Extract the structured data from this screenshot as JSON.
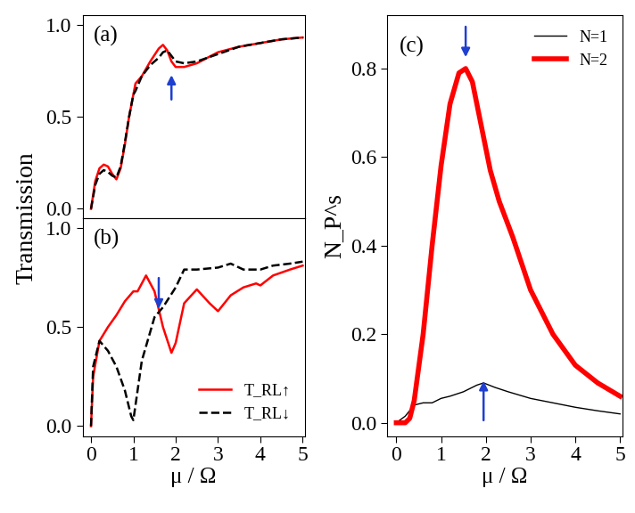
{
  "chart_data": [
    {
      "type": "line",
      "title": "(a)",
      "xlim": [
        -0.2,
        5.05
      ],
      "xticks": [
        0,
        1,
        2,
        3,
        4,
        5
      ],
      "ylim": [
        -0.05,
        1.05
      ],
      "yticks": [
        {
          "value": 0,
          "label": "0.0"
        },
        {
          "value": 0.5,
          "label": "0.5"
        },
        {
          "value": 1.0,
          "label": "1.0"
        }
      ],
      "tick_labels": "y",
      "series": [
        {
          "color": "#ff0000",
          "line_style": "solid",
          "x": [
            0,
            0.1,
            0.2,
            0.3,
            0.4,
            0.5,
            0.6,
            0.7,
            0.8,
            0.9,
            1.0,
            1.05,
            1.2,
            1.4,
            1.6,
            1.7,
            1.8,
            1.9,
            2.0,
            2.2,
            2.5,
            3,
            3.5,
            4,
            4.5,
            5
          ],
          "values": [
            0,
            0.15,
            0.22,
            0.24,
            0.23,
            0.19,
            0.16,
            0.22,
            0.35,
            0.5,
            0.62,
            0.68,
            0.72,
            0.8,
            0.87,
            0.89,
            0.86,
            0.8,
            0.77,
            0.77,
            0.79,
            0.85,
            0.88,
            0.9,
            0.92,
            0.93
          ]
        },
        {
          "color": "#000000",
          "line_style": "dashed",
          "x": [
            0,
            0.1,
            0.2,
            0.3,
            0.4,
            0.5,
            0.6,
            0.7,
            0.8,
            0.9,
            1.0,
            1.05,
            1.2,
            1.4,
            1.6,
            1.7,
            1.8,
            1.9,
            2.0,
            2.2,
            2.5,
            3,
            3.5,
            4,
            4.5,
            5
          ],
          "values": [
            0,
            0.13,
            0.19,
            0.21,
            0.2,
            0.18,
            0.17,
            0.23,
            0.36,
            0.5,
            0.62,
            0.64,
            0.72,
            0.78,
            0.82,
            0.85,
            0.86,
            0.83,
            0.8,
            0.79,
            0.8,
            0.84,
            0.88,
            0.9,
            0.92,
            0.93
          ]
        }
      ],
      "arrows": [
        {
          "x": 1.9,
          "y": 0.74,
          "from": 0.58
        }
      ]
    },
    {
      "type": "line",
      "title": "(b)",
      "x_label": "μ / Ω",
      "y_label": "Transmission",
      "xlim": [
        -0.2,
        5.05
      ],
      "xticks": [
        0,
        1,
        2,
        3,
        4,
        5
      ],
      "ylim": [
        -0.05,
        1.05
      ],
      "yticks": [
        {
          "value": 0,
          "label": "0.0"
        },
        {
          "value": 0.5,
          "label": "0.5"
        },
        {
          "value": 1.0,
          "label": "1.0"
        }
      ],
      "legend": "lower right",
      "series": [
        {
          "name": "T_RL↑",
          "color": "#ff0000",
          "line_style": "solid",
          "x": [
            0,
            0.05,
            0.2,
            0.4,
            0.6,
            0.8,
            1.0,
            1.1,
            1.3,
            1.5,
            1.7,
            1.9,
            2.0,
            2.2,
            2.5,
            2.8,
            3.0,
            3.3,
            3.6,
            3.9,
            4.0,
            4.3,
            4.7,
            5
          ],
          "values": [
            0,
            0.25,
            0.43,
            0.5,
            0.56,
            0.63,
            0.68,
            0.68,
            0.76,
            0.68,
            0.5,
            0.37,
            0.42,
            0.62,
            0.69,
            0.62,
            0.58,
            0.66,
            0.7,
            0.72,
            0.71,
            0.76,
            0.79,
            0.81
          ]
        },
        {
          "name": "T_RL↓",
          "color": "#000000",
          "line_style": "dashed",
          "x": [
            0,
            0.05,
            0.2,
            0.4,
            0.6,
            0.8,
            0.95,
            1.0,
            1.2,
            1.5,
            1.7,
            2,
            2.2,
            2.5,
            3,
            3.3,
            3.6,
            4,
            4.3,
            4.7,
            5
          ],
          "values": [
            0,
            0.3,
            0.43,
            0.38,
            0.3,
            0.18,
            0.05,
            0.03,
            0.33,
            0.55,
            0.6,
            0.7,
            0.79,
            0.79,
            0.8,
            0.82,
            0.79,
            0.79,
            0.81,
            0.82,
            0.83
          ]
        }
      ],
      "arrows": [
        {
          "x": 1.6,
          "y": 0.58,
          "from": 0.76
        }
      ]
    },
    {
      "type": "line",
      "title": "(c)",
      "x_label": "μ / Ω",
      "y_label": "N_P^s",
      "xlim": [
        -0.2,
        5.05
      ],
      "xticks": [
        0,
        1,
        2,
        3,
        4,
        5
      ],
      "ylim": [
        -0.03,
        0.92
      ],
      "yticks": [
        {
          "value": 0,
          "label": "0.0"
        },
        {
          "value": 0.2,
          "label": "0.2"
        },
        {
          "value": 0.4,
          "label": "0.4"
        },
        {
          "value": 0.6,
          "label": "0.6"
        },
        {
          "value": 0.8,
          "label": "0.8"
        }
      ],
      "legend": "upper right",
      "series": [
        {
          "name": "N=1",
          "color": "#000000",
          "line_style": "solid",
          "x": [
            0,
            0.2,
            0.4,
            0.6,
            0.8,
            1,
            1.2,
            1.5,
            1.8,
            1.95,
            2.2,
            2.5,
            3,
            3.5,
            4,
            4.5,
            5
          ],
          "values": [
            0,
            0.015,
            0.04,
            0.045,
            0.045,
            0.055,
            0.06,
            0.07,
            0.085,
            0.09,
            0.08,
            0.07,
            0.055,
            0.045,
            0.035,
            0.027,
            0.02
          ]
        },
        {
          "name": "N=2",
          "color": "#ff0000",
          "line_style": "solid",
          "x": [
            0,
            0.2,
            0.3,
            0.4,
            0.6,
            0.8,
            1.0,
            1.2,
            1.4,
            1.55,
            1.7,
            1.9,
            2.1,
            2.3,
            2.6,
            3,
            3.5,
            4,
            4.5,
            5
          ],
          "values": [
            0,
            0,
            0.01,
            0.05,
            0.2,
            0.4,
            0.58,
            0.72,
            0.79,
            0.8,
            0.77,
            0.67,
            0.57,
            0.5,
            0.42,
            0.3,
            0.2,
            0.13,
            0.09,
            0.06
          ]
        }
      ],
      "arrows": [
        {
          "x": 1.55,
          "y": 0.82,
          "from": 0.9
        },
        {
          "x": 1.95,
          "y": 0.1,
          "from": 0.0
        }
      ]
    }
  ]
}
